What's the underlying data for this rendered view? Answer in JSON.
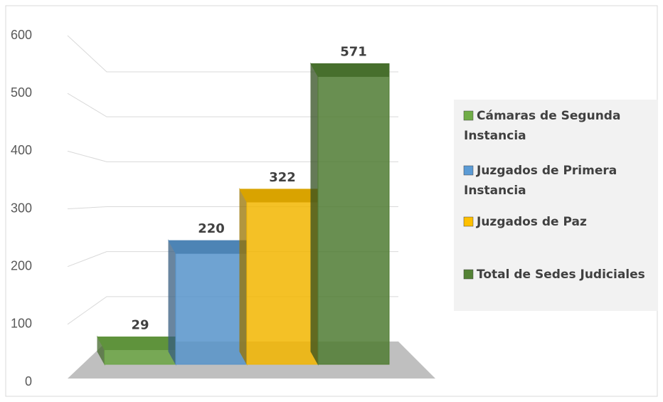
{
  "chart_data": {
    "type": "bar3d",
    "series": [
      {
        "name": "Cámaras de Segunda Instancia",
        "color": "#70ad47",
        "values": [
          29
        ]
      },
      {
        "name": "Juzgados de Primera Instancia",
        "color": "#5b9bd5",
        "values": [
          220
        ]
      },
      {
        "name": "Juzgados de Paz",
        "color": "#ffc000",
        "values": [
          322
        ]
      },
      {
        "name": "Total de Sedes Judiciales",
        "color": "#548235",
        "values": [
          571
        ]
      }
    ],
    "ylim": [
      0,
      600
    ],
    "yticks": [
      0,
      100,
      200,
      300,
      400,
      500,
      600
    ],
    "grid": true,
    "legend": "right"
  }
}
